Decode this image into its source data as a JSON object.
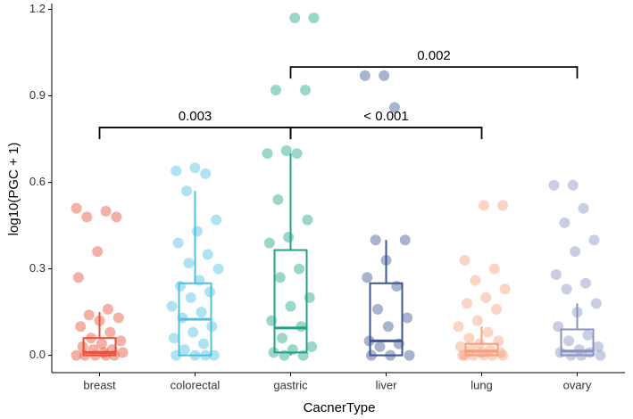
{
  "chart_data": {
    "type": "box",
    "x_label": "CacnerType",
    "y_label": "log10(PGC + 1)",
    "ylim": [
      -0.06,
      1.22
    ],
    "yticks": [
      {
        "value": 0,
        "label": "0.0"
      },
      0.3,
      0.6,
      0.9,
      1.2
    ],
    "series": [
      {
        "name": "breast",
        "color": "#e8503a",
        "whisker_low": 0,
        "q1": 0,
        "median": 0.01,
        "q3": 0.06,
        "whisker_high": 0.15,
        "points": [
          0.51,
          0.5,
          0.48,
          0.48,
          0.36,
          0.27,
          0.16,
          0.14,
          0.13,
          0.12,
          0.1,
          0.08,
          0.06,
          0.05,
          0.04,
          0.03,
          0.02,
          0.02,
          0.01,
          0.01,
          0,
          0,
          0,
          0,
          0
        ]
      },
      {
        "name": "colorectal",
        "color": "#4fc0e0",
        "whisker_low": 0,
        "q1": 0,
        "median": 0.125,
        "q3": 0.25,
        "whisker_high": 0.57,
        "points": [
          0.65,
          0.64,
          0.63,
          0.57,
          0.47,
          0.43,
          0.39,
          0.35,
          0.32,
          0.3,
          0.26,
          0.24,
          0.22,
          0.2,
          0.17,
          0.15,
          0.13,
          0.1,
          0.08,
          0.06,
          0.04,
          0.02,
          0,
          0,
          0,
          0
        ]
      },
      {
        "name": "gastric",
        "color": "#1fa48a",
        "whisker_low": 0,
        "q1": 0.01,
        "median": 0.095,
        "q3": 0.365,
        "whisker_high": 0.7,
        "points": [
          1.17,
          1.17,
          0.92,
          0.92,
          0.71,
          0.7,
          0.7,
          0.54,
          0.47,
          0.41,
          0.39,
          0.3,
          0.27,
          0.2,
          0.17,
          0.12,
          0.1,
          0.06,
          0.03,
          0.02,
          0.01,
          0,
          0
        ]
      },
      {
        "name": "liver",
        "color": "#3d5690",
        "whisker_low": 0,
        "q1": 0,
        "median": 0.05,
        "q3": 0.25,
        "whisker_high": 0.4,
        "points": [
          0.97,
          0.97,
          0.86,
          0.4,
          0.4,
          0.33,
          0.27,
          0.24,
          0.16,
          0.13,
          0.1,
          0.05,
          0.04,
          0.03,
          0,
          0,
          0
        ]
      },
      {
        "name": "lung",
        "color": "#f4a07e",
        "whisker_low": 0,
        "q1": 0,
        "median": 0.015,
        "q3": 0.04,
        "whisker_high": 0.1,
        "points": [
          0.52,
          0.52,
          0.33,
          0.3,
          0.26,
          0.23,
          0.2,
          0.18,
          0.16,
          0.12,
          0.1,
          0.08,
          0.06,
          0.05,
          0.04,
          0.03,
          0.02,
          0.02,
          0.01,
          0.01,
          0,
          0,
          0,
          0,
          0,
          0
        ]
      },
      {
        "name": "ovary",
        "color": "#8a93c0",
        "whisker_low": 0,
        "q1": 0,
        "median": 0.015,
        "q3": 0.09,
        "whisker_high": 0.18,
        "points": [
          0.59,
          0.59,
          0.51,
          0.46,
          0.4,
          0.36,
          0.28,
          0.25,
          0.23,
          0.18,
          0.15,
          0.1,
          0.07,
          0.05,
          0.03,
          0.02,
          0.01,
          0.01,
          0,
          0,
          0
        ]
      }
    ],
    "comparisons": [
      {
        "label": "0.003",
        "groups": [
          "breast",
          "gastric"
        ],
        "y": 0.79
      },
      {
        "label": "< 0.001",
        "groups": [
          "gastric",
          "lung"
        ],
        "y": 0.79
      },
      {
        "label": "0.002",
        "groups": [
          "gastric",
          "ovary"
        ],
        "y": 1.0
      }
    ]
  }
}
